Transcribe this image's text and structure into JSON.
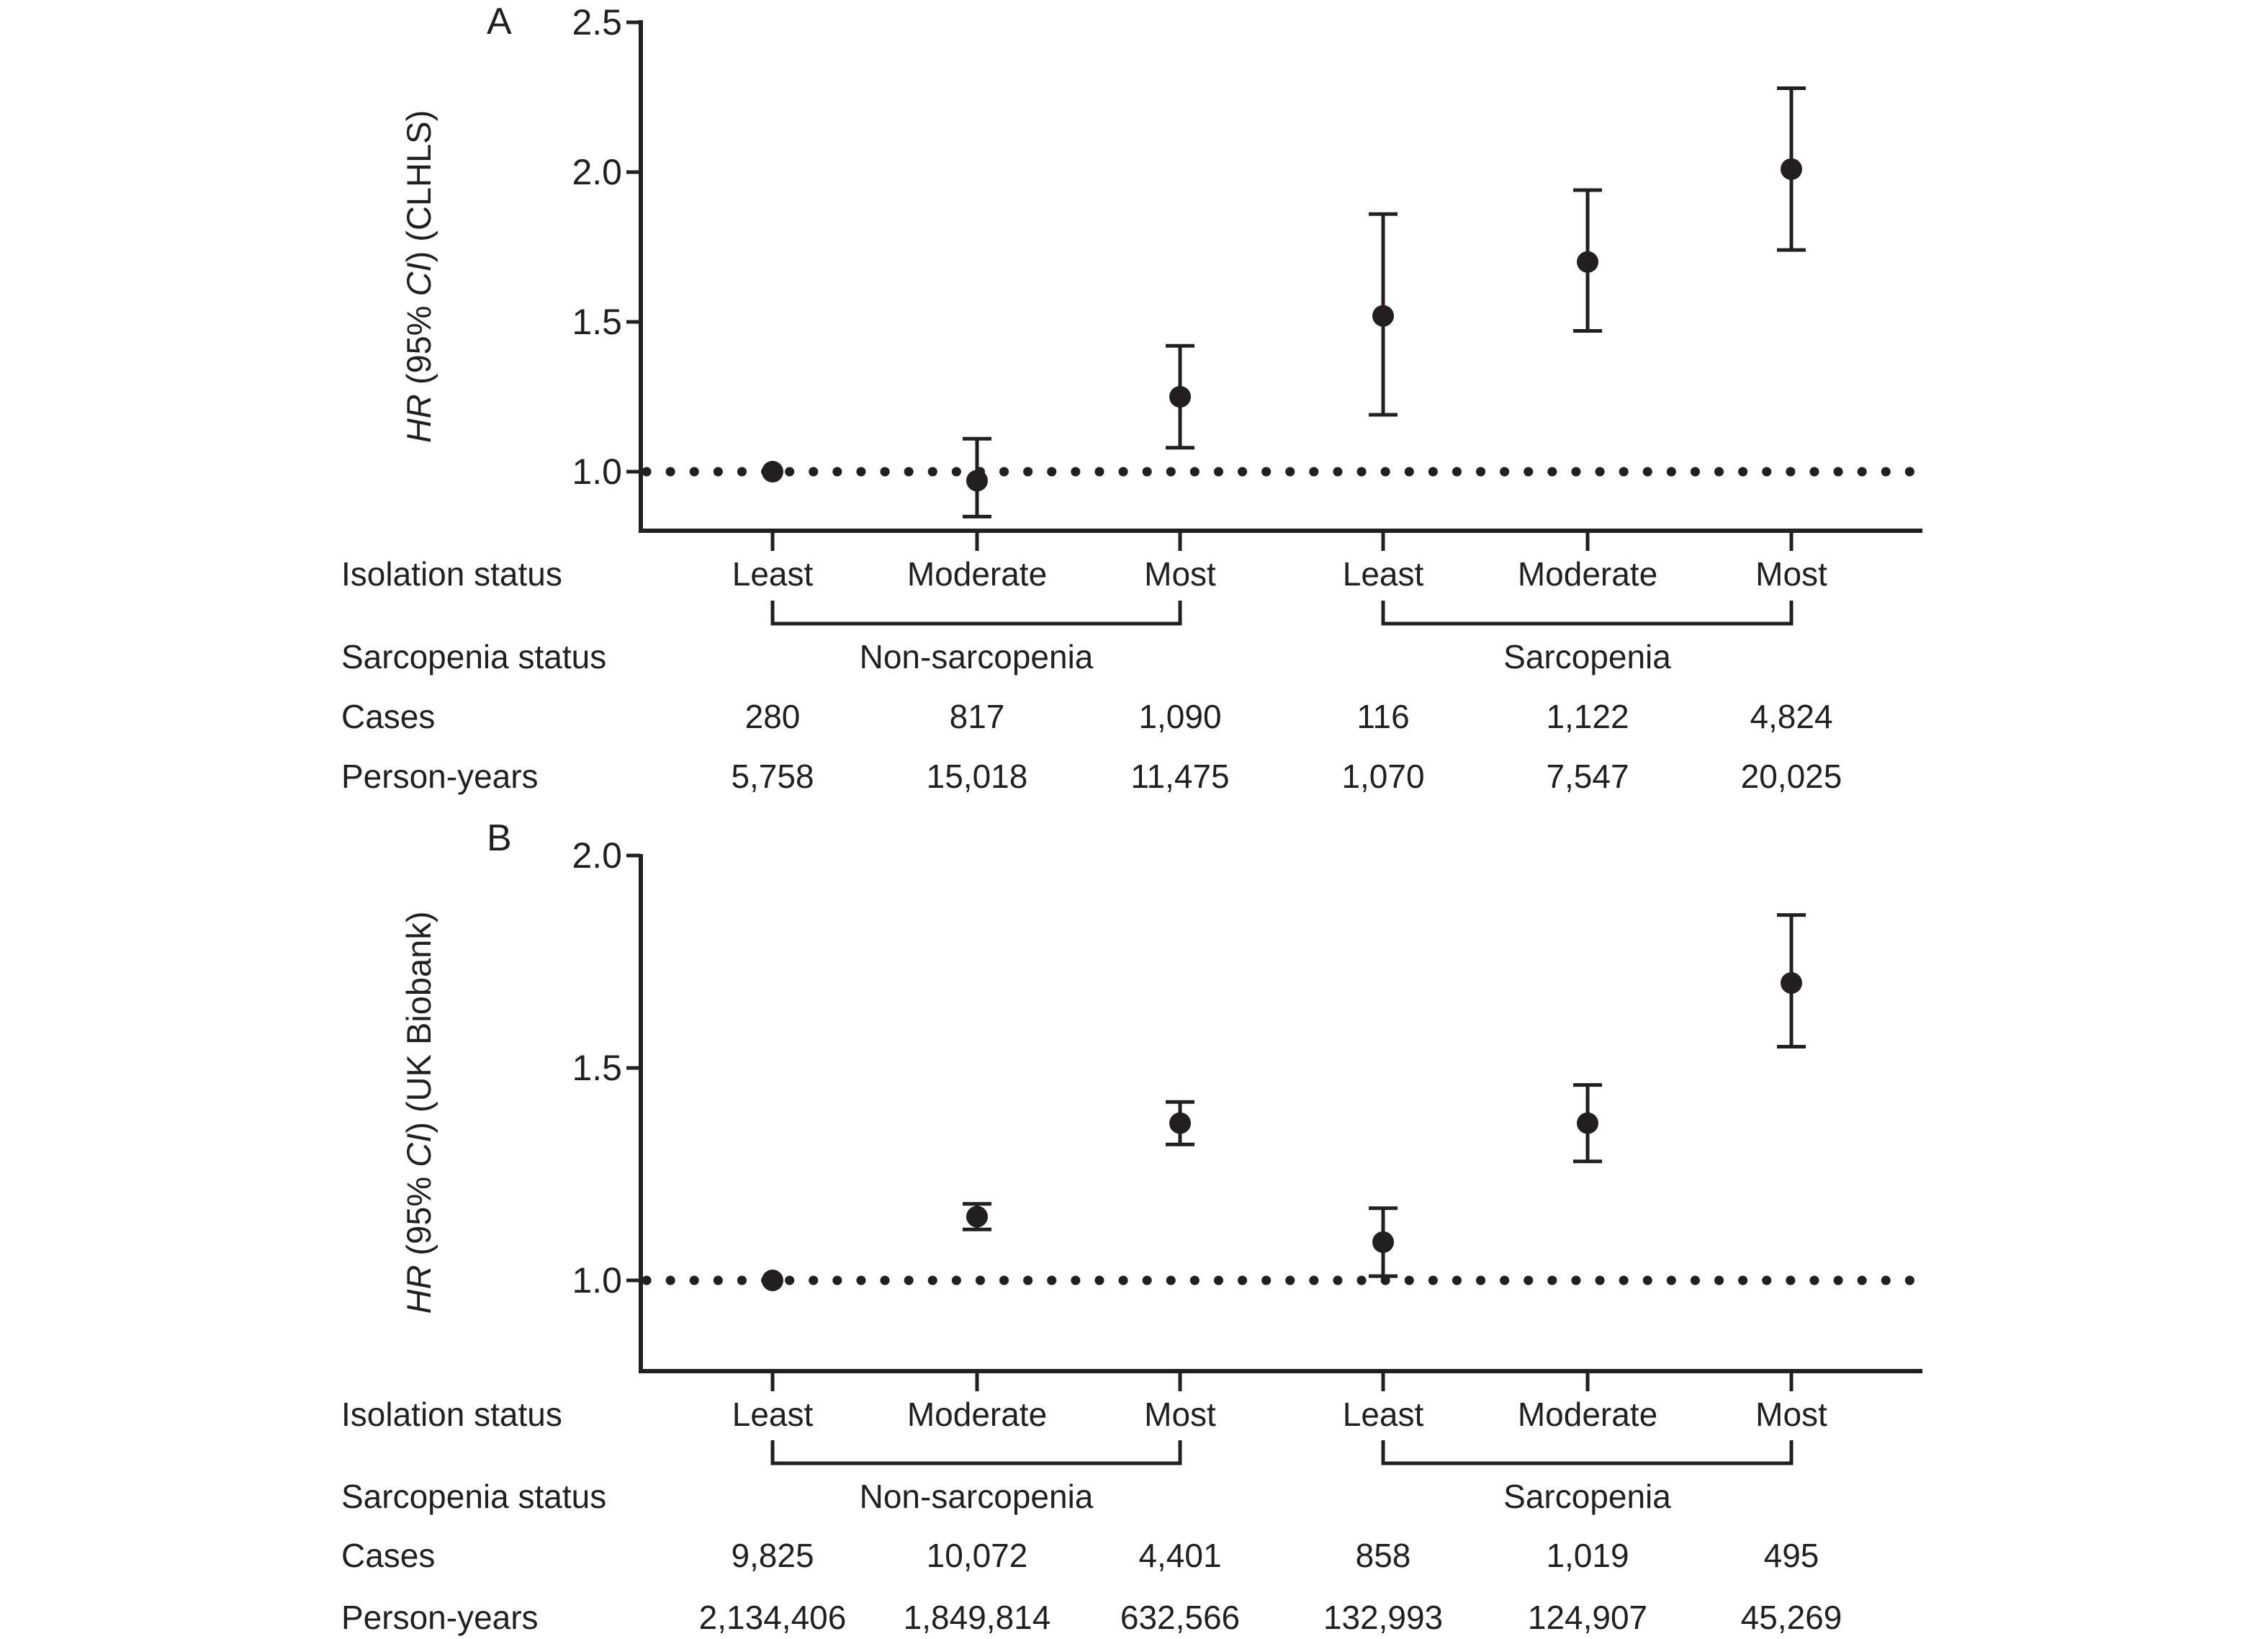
{
  "ink_color": "#231f20",
  "chart_data": [
    {
      "panel_label": "A",
      "type": "scatter",
      "cohort": "CLHLS",
      "ylabel": "HR (95% CI) (CLHLS)",
      "ylabel_segments": [
        {
          "text": "HR",
          "italic": true
        },
        {
          "text": " (95% ",
          "italic": false
        },
        {
          "text": "CI",
          "italic": true
        },
        {
          "text": ") (CLHLS)",
          "italic": false
        }
      ],
      "yticks": [
        "1.0",
        "1.5",
        "2.0",
        "2.5"
      ],
      "ylim": [
        0.74,
        2.5
      ],
      "reference_line": 1.0,
      "points": [
        {
          "isolation": "Least",
          "group": "Non-sarcopenia",
          "hr": 1.0,
          "lo": null,
          "hi": null,
          "reference": true
        },
        {
          "isolation": "Moderate",
          "group": "Non-sarcopenia",
          "hr": 0.97,
          "lo": 0.85,
          "hi": 1.11,
          "reference": false
        },
        {
          "isolation": "Most",
          "group": "Non-sarcopenia",
          "hr": 1.25,
          "lo": 1.08,
          "hi": 1.42,
          "reference": false
        },
        {
          "isolation": "Least",
          "group": "Sarcopenia",
          "hr": 1.52,
          "lo": 1.19,
          "hi": 1.86,
          "reference": false
        },
        {
          "isolation": "Moderate",
          "group": "Sarcopenia",
          "hr": 1.7,
          "lo": 1.47,
          "hi": 1.94,
          "reference": false
        },
        {
          "isolation": "Most",
          "group": "Sarcopenia",
          "hr": 2.01,
          "lo": 1.74,
          "hi": 2.28,
          "reference": false
        }
      ],
      "table": {
        "row_labels": [
          "Isolation status",
          "Sarcopenia status",
          "Cases",
          "Person-years"
        ],
        "isolation": [
          "Least",
          "Moderate",
          "Most",
          "Least",
          "Moderate",
          "Most"
        ],
        "groups": [
          "Non-sarcopenia",
          "Sarcopenia"
        ],
        "cases": [
          "280",
          "817",
          "1,090",
          "116",
          "1,122",
          "4,824"
        ],
        "person_years": [
          "5,758",
          "15,018",
          "11,475",
          "1,070",
          "7,547",
          "20,025"
        ]
      }
    },
    {
      "panel_label": "B",
      "type": "scatter",
      "cohort": "UK Biobank",
      "ylabel": "HR (95% CI) (UK Biobank)",
      "ylabel_segments": [
        {
          "text": "HR",
          "italic": true
        },
        {
          "text": " (95% ",
          "italic": false
        },
        {
          "text": "CI",
          "italic": true
        },
        {
          "text": ") (UK Biobank)",
          "italic": false
        }
      ],
      "yticks": [
        "1.0",
        "1.5",
        "2.0"
      ],
      "ylim": [
        0.78,
        2.0
      ],
      "reference_line": 1.0,
      "points": [
        {
          "isolation": "Least",
          "group": "Non-sarcopenia",
          "hr": 1.0,
          "lo": null,
          "hi": null,
          "reference": true
        },
        {
          "isolation": "Moderate",
          "group": "Non-sarcopenia",
          "hr": 1.15,
          "lo": 1.12,
          "hi": 1.18,
          "reference": false
        },
        {
          "isolation": "Most",
          "group": "Non-sarcopenia",
          "hr": 1.37,
          "lo": 1.32,
          "hi": 1.42,
          "reference": false
        },
        {
          "isolation": "Least",
          "group": "Sarcopenia",
          "hr": 1.09,
          "lo": 1.01,
          "hi": 1.17,
          "reference": false
        },
        {
          "isolation": "Moderate",
          "group": "Sarcopenia",
          "hr": 1.37,
          "lo": 1.28,
          "hi": 1.46,
          "reference": false
        },
        {
          "isolation": "Most",
          "group": "Sarcopenia",
          "hr": 1.7,
          "lo": 1.55,
          "hi": 1.86,
          "reference": false
        }
      ],
      "table": {
        "row_labels": [
          "Isolation status",
          "Sarcopenia status",
          "Cases",
          "Person-years"
        ],
        "isolation": [
          "Least",
          "Moderate",
          "Most",
          "Least",
          "Moderate",
          "Most"
        ],
        "groups": [
          "Non-sarcopenia",
          "Sarcopenia"
        ],
        "cases": [
          "9,825",
          "10,072",
          "4,401",
          "858",
          "1,019",
          "495"
        ],
        "person_years": [
          "2,134,406",
          "1,849,814",
          "632,566",
          "132,993",
          "124,907",
          "45,269"
        ]
      }
    }
  ]
}
